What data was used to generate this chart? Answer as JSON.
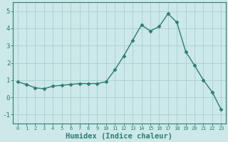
{
  "x": [
    0,
    1,
    2,
    3,
    4,
    5,
    6,
    7,
    8,
    9,
    10,
    11,
    12,
    13,
    14,
    15,
    16,
    17,
    18,
    19,
    20,
    21,
    22,
    23
  ],
  "y": [
    0.9,
    0.75,
    0.55,
    0.5,
    0.65,
    0.7,
    0.75,
    0.8,
    0.8,
    0.8,
    0.9,
    1.6,
    2.4,
    3.3,
    4.2,
    3.85,
    4.1,
    4.85,
    4.35,
    2.65,
    1.85,
    1.0,
    0.3,
    -0.7
  ],
  "line_color": "#2e7d6e",
  "marker": "D",
  "marker_size": 2.5,
  "bg_color": "#cce8e8",
  "grid_color": "#aacfcf",
  "xlabel": "Humidex (Indice chaleur)",
  "xlabel_fontsize": 7.5,
  "ylabel_ticks": [
    -1,
    0,
    1,
    2,
    3,
    4,
    5
  ],
  "xlim": [
    -0.5,
    23.5
  ],
  "ylim": [
    -1.5,
    5.5
  ],
  "title": ""
}
